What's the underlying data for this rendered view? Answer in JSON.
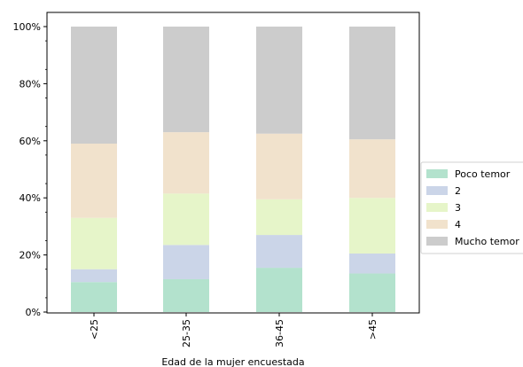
{
  "chart_data": {
    "type": "bar",
    "stacked": true,
    "normalized_percent": true,
    "categories": [
      "<25",
      "25-35",
      "36-45",
      ">45"
    ],
    "series": [
      {
        "name": "Poco temor",
        "color": "#b3e2cd",
        "values": [
          10.5,
          11.5,
          15.5,
          13.5
        ]
      },
      {
        "name": "2",
        "color": "#cbd5e8",
        "values": [
          4.5,
          12.0,
          11.5,
          7.0
        ]
      },
      {
        "name": "3",
        "color": "#e6f5c9",
        "values": [
          18.0,
          18.0,
          12.5,
          19.5
        ]
      },
      {
        "name": "4",
        "color": "#f1e2cc",
        "values": [
          26.0,
          21.5,
          23.0,
          20.5
        ]
      },
      {
        "name": "Mucho temor",
        "color": "#cccccc",
        "values": [
          41.0,
          37.0,
          37.5,
          39.5
        ]
      }
    ],
    "xlabel": "Edad de la mujer encuestada",
    "ylabel": "",
    "ylim": [
      0,
      100
    ],
    "yticks": [
      "0%",
      "20%",
      "40%",
      "60%",
      "80%",
      "100%"
    ],
    "grid": false,
    "legend_position": "right"
  }
}
